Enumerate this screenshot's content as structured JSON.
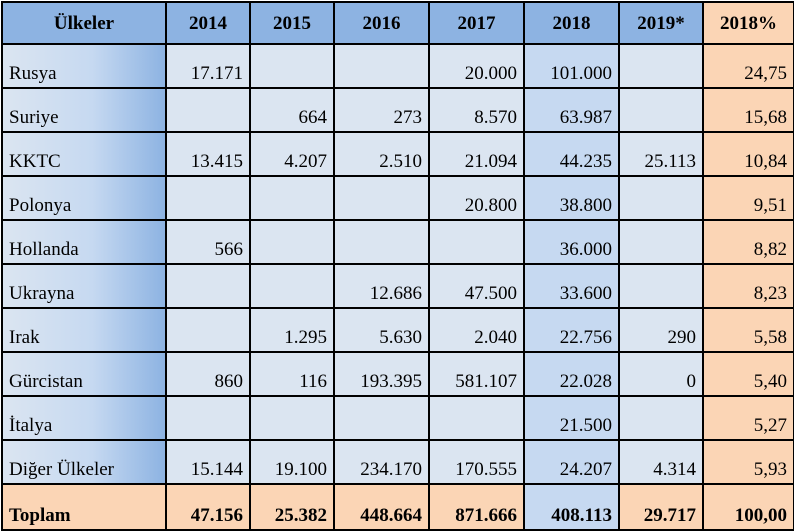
{
  "table": {
    "headers": [
      "Ülkeler",
      "2014",
      "2015",
      "2016",
      "2017",
      "2018",
      "2019*",
      "2018%"
    ],
    "rows": [
      [
        "Rusya",
        "17.171",
        "",
        "",
        "20.000",
        "101.000",
        "",
        "24,75"
      ],
      [
        "Suriye",
        "",
        "664",
        "273",
        "8.570",
        "63.987",
        "",
        "15,68"
      ],
      [
        "KKTC",
        "13.415",
        "4.207",
        "2.510",
        "21.094",
        "44.235",
        "25.113",
        "10,84"
      ],
      [
        "Polonya",
        "",
        "",
        "",
        "20.800",
        "38.800",
        "",
        "9,51"
      ],
      [
        "Hollanda",
        "566",
        "",
        "",
        "",
        "36.000",
        "",
        "8,82"
      ],
      [
        "Ukrayna",
        "",
        "",
        "12.686",
        "47.500",
        "33.600",
        "",
        "8,23"
      ],
      [
        "Irak",
        "",
        "1.295",
        "5.630",
        "2.040",
        "22.756",
        "290",
        "5,58"
      ],
      [
        "Gürcistan",
        "860",
        "116",
        "193.395",
        "581.107",
        "22.028",
        "0",
        "5,40"
      ],
      [
        "İtalya",
        "",
        "",
        "",
        "",
        "21.500",
        "",
        "5,27"
      ],
      [
        "Diğer Ülkeler",
        "15.144",
        "19.100",
        "234.170",
        "170.555",
        "24.207",
        "4.314",
        "5,93"
      ]
    ],
    "total": [
      "Toplam",
      "47.156",
      "25.382",
      "448.664",
      "871.666",
      "408.113",
      "29.717",
      "100,00"
    ]
  }
}
